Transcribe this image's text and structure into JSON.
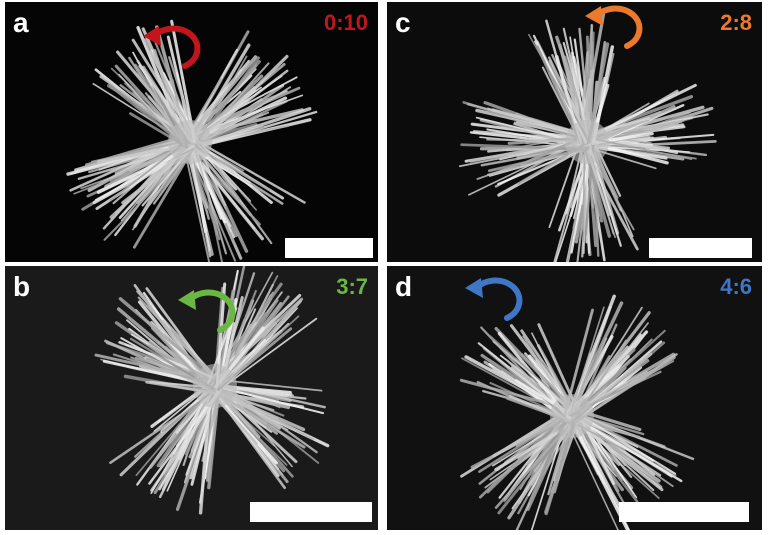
{
  "panels": [
    {
      "letter": "a",
      "ratio": "0:10",
      "ratio_color": "#c0161c"
    },
    {
      "letter": "b",
      "ratio": "3:7",
      "ratio_color": "#6ab843"
    },
    {
      "letter": "c",
      "ratio": "2:8",
      "ratio_color": "#ec7a2c"
    },
    {
      "letter": "d",
      "ratio": "4:6",
      "ratio_color": "#3f77c6"
    }
  ]
}
